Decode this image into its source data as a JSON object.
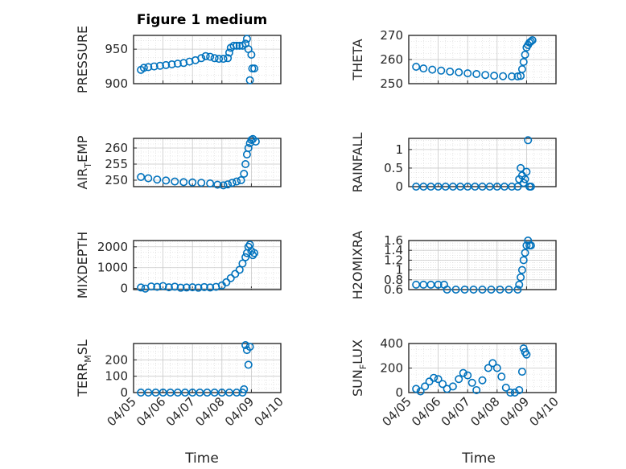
{
  "figure": {
    "title": "Figure 1 medium",
    "marker_color": "#0072BD",
    "xlabel": "Time",
    "x_ticks": [
      "04/05",
      "04/06",
      "04/07",
      "04/08",
      "04/09",
      "04/10"
    ]
  },
  "chart_data": [
    {
      "type": "scatter",
      "ylabel": {
        "main": "PRESSURE"
      },
      "xlim": [
        0,
        5
      ],
      "ylim": [
        900,
        970
      ],
      "yticks": [
        900,
        950
      ],
      "grid": true,
      "title": "Figure 1 medium",
      "series": [
        {
          "points": [
            [
              0.25,
              920
            ],
            [
              0.35,
              923
            ],
            [
              0.5,
              924
            ],
            [
              0.7,
              925
            ],
            [
              0.9,
              926
            ],
            [
              1.1,
              927
            ],
            [
              1.3,
              928
            ],
            [
              1.5,
              929
            ],
            [
              1.7,
              930
            ],
            [
              1.9,
              932
            ],
            [
              2.1,
              934
            ],
            [
              2.3,
              937
            ],
            [
              2.45,
              940
            ],
            [
              2.6,
              939
            ],
            [
              2.75,
              937
            ],
            [
              2.9,
              936
            ],
            [
              3.05,
              936
            ],
            [
              3.2,
              937
            ],
            [
              3.25,
              945
            ],
            [
              3.3,
              952
            ],
            [
              3.4,
              955
            ],
            [
              3.5,
              955
            ],
            [
              3.6,
              955
            ],
            [
              3.7,
              955
            ],
            [
              3.8,
              958
            ],
            [
              3.85,
              965
            ],
            [
              3.9,
              950
            ],
            [
              3.95,
              905
            ],
            [
              4.0,
              942
            ],
            [
              4.03,
              922
            ],
            [
              4.1,
              922
            ]
          ]
        }
      ]
    },
    {
      "type": "scatter",
      "ylabel": {
        "main": "THETA"
      },
      "xlim": [
        0,
        5
      ],
      "ylim": [
        250,
        270
      ],
      "yticks": [
        250,
        260,
        270
      ],
      "grid": true,
      "series": [
        {
          "points": [
            [
              0.25,
              257
            ],
            [
              0.5,
              256.3
            ],
            [
              0.8,
              255.8
            ],
            [
              1.1,
              255.4
            ],
            [
              1.4,
              255
            ],
            [
              1.7,
              254.7
            ],
            [
              2.0,
              254.3
            ],
            [
              2.3,
              254
            ],
            [
              2.6,
              253.6
            ],
            [
              2.9,
              253.3
            ],
            [
              3.2,
              253.1
            ],
            [
              3.5,
              253
            ],
            [
              3.7,
              253
            ],
            [
              3.8,
              253.2
            ],
            [
              3.85,
              256
            ],
            [
              3.9,
              259
            ],
            [
              3.95,
              262
            ],
            [
              4.0,
              265
            ],
            [
              4.05,
              266
            ],
            [
              4.1,
              267
            ],
            [
              4.15,
              267.5
            ],
            [
              4.2,
              268
            ]
          ]
        }
      ]
    },
    {
      "type": "scatter",
      "ylabel": {
        "main": "AIR",
        "sub": "T",
        "rest": "EMP"
      },
      "xlim": [
        0,
        5
      ],
      "ylim": [
        248,
        263
      ],
      "yticks": [
        250,
        255,
        260
      ],
      "grid": true,
      "series": [
        {
          "points": [
            [
              0.25,
              251
            ],
            [
              0.5,
              250.6
            ],
            [
              0.8,
              250.2
            ],
            [
              1.1,
              249.9
            ],
            [
              1.4,
              249.6
            ],
            [
              1.7,
              249.4
            ],
            [
              2.0,
              249.3
            ],
            [
              2.3,
              249.2
            ],
            [
              2.6,
              249
            ],
            [
              2.85,
              248.6
            ],
            [
              3.05,
              248.4
            ],
            [
              3.2,
              248.7
            ],
            [
              3.35,
              249.2
            ],
            [
              3.5,
              249.6
            ],
            [
              3.65,
              250
            ],
            [
              3.75,
              252
            ],
            [
              3.8,
              255
            ],
            [
              3.85,
              258
            ],
            [
              3.9,
              260
            ],
            [
              3.95,
              261.5
            ],
            [
              4.0,
              262.5
            ],
            [
              4.05,
              262.8
            ],
            [
              4.15,
              262
            ]
          ]
        }
      ]
    },
    {
      "type": "scatter",
      "ylabel": {
        "main": "RAINFALL"
      },
      "xlim": [
        0,
        5
      ],
      "ylim": [
        0,
        1.3
      ],
      "yticks": [
        0,
        0.5,
        1
      ],
      "grid": true,
      "series": [
        {
          "points": [
            [
              0.25,
              0
            ],
            [
              0.5,
              0
            ],
            [
              0.75,
              0
            ],
            [
              1.0,
              0
            ],
            [
              1.25,
              0
            ],
            [
              1.5,
              0
            ],
            [
              1.75,
              0
            ],
            [
              2.0,
              0
            ],
            [
              2.25,
              0
            ],
            [
              2.5,
              0
            ],
            [
              2.75,
              0
            ],
            [
              3.0,
              0
            ],
            [
              3.25,
              0
            ],
            [
              3.5,
              0
            ],
            [
              3.7,
              0
            ],
            [
              3.75,
              0.2
            ],
            [
              3.8,
              0.5
            ],
            [
              3.85,
              0.3
            ],
            [
              3.9,
              0.1
            ],
            [
              3.95,
              0.2
            ],
            [
              4.0,
              0.4
            ],
            [
              4.05,
              1.25
            ],
            [
              4.1,
              0
            ],
            [
              4.15,
              0
            ]
          ]
        }
      ]
    },
    {
      "type": "scatter",
      "ylabel": {
        "main": "MIXDEPTH"
      },
      "xlim": [
        0,
        5
      ],
      "ylim": [
        -50,
        2300
      ],
      "yticks": [
        0,
        1000,
        2000
      ],
      "grid": true,
      "series": [
        {
          "points": [
            [
              0.25,
              50
            ],
            [
              0.4,
              0
            ],
            [
              0.6,
              100
            ],
            [
              0.8,
              80
            ],
            [
              1.0,
              120
            ],
            [
              1.2,
              60
            ],
            [
              1.4,
              90
            ],
            [
              1.6,
              40
            ],
            [
              1.8,
              50
            ],
            [
              2.0,
              60
            ],
            [
              2.2,
              40
            ],
            [
              2.4,
              70
            ],
            [
              2.6,
              50
            ],
            [
              2.8,
              80
            ],
            [
              3.0,
              150
            ],
            [
              3.15,
              300
            ],
            [
              3.3,
              500
            ],
            [
              3.45,
              700
            ],
            [
              3.6,
              900
            ],
            [
              3.7,
              1200
            ],
            [
              3.8,
              1500
            ],
            [
              3.85,
              1700
            ],
            [
              3.9,
              2000
            ],
            [
              3.95,
              2100
            ],
            [
              4.0,
              1800
            ],
            [
              4.05,
              1600
            ],
            [
              4.1,
              1700
            ]
          ]
        }
      ]
    },
    {
      "type": "scatter",
      "ylabel": {
        "main": "H2OMIXRA"
      },
      "xlim": [
        0,
        5
      ],
      "ylim": [
        0.6,
        1.6
      ],
      "yticks": [
        0.6,
        0.8,
        1,
        1.2,
        1.4,
        1.6
      ],
      "grid": true,
      "series": [
        {
          "points": [
            [
              0.25,
              0.7
            ],
            [
              0.5,
              0.7
            ],
            [
              0.75,
              0.7
            ],
            [
              1.0,
              0.7
            ],
            [
              1.2,
              0.7
            ],
            [
              1.3,
              0.6
            ],
            [
              1.6,
              0.6
            ],
            [
              1.9,
              0.6
            ],
            [
              2.2,
              0.6
            ],
            [
              2.5,
              0.6
            ],
            [
              2.8,
              0.6
            ],
            [
              3.1,
              0.6
            ],
            [
              3.4,
              0.6
            ],
            [
              3.7,
              0.6
            ],
            [
              3.75,
              0.7
            ],
            [
              3.8,
              0.85
            ],
            [
              3.85,
              1.0
            ],
            [
              3.9,
              1.2
            ],
            [
              3.95,
              1.35
            ],
            [
              4.0,
              1.5
            ],
            [
              4.05,
              1.6
            ],
            [
              4.1,
              1.5
            ],
            [
              4.15,
              1.5
            ]
          ]
        }
      ]
    },
    {
      "type": "scatter",
      "ylabel": {
        "main": "TERR",
        "sub": "M",
        "rest": "SL"
      },
      "xlim": [
        0,
        5
      ],
      "ylim": [
        0,
        300
      ],
      "yticks": [
        0,
        100,
        200
      ],
      "grid": true,
      "series": [
        {
          "points": [
            [
              0.25,
              0
            ],
            [
              0.5,
              0
            ],
            [
              0.75,
              0
            ],
            [
              1.0,
              0
            ],
            [
              1.25,
              0
            ],
            [
              1.5,
              0
            ],
            [
              1.75,
              0
            ],
            [
              2.0,
              0
            ],
            [
              2.25,
              0
            ],
            [
              2.5,
              0
            ],
            [
              2.75,
              0
            ],
            [
              3.0,
              0
            ],
            [
              3.25,
              0
            ],
            [
              3.5,
              0
            ],
            [
              3.7,
              0
            ],
            [
              3.75,
              20
            ],
            [
              3.8,
              290
            ],
            [
              3.85,
              260
            ],
            [
              3.9,
              170
            ],
            [
              3.95,
              280
            ]
          ]
        }
      ]
    },
    {
      "type": "scatter",
      "ylabel": {
        "main": "SUN",
        "sub": "F",
        "rest": "LUX"
      },
      "xlim": [
        0,
        5
      ],
      "ylim": [
        0,
        400
      ],
      "yticks": [
        0,
        200,
        400
      ],
      "grid": true,
      "series": [
        {
          "points": [
            [
              0.25,
              30
            ],
            [
              0.4,
              10
            ],
            [
              0.55,
              50
            ],
            [
              0.7,
              90
            ],
            [
              0.85,
              120
            ],
            [
              1.0,
              110
            ],
            [
              1.15,
              70
            ],
            [
              1.3,
              30
            ],
            [
              1.5,
              50
            ],
            [
              1.7,
              110
            ],
            [
              1.85,
              160
            ],
            [
              2.0,
              140
            ],
            [
              2.15,
              80
            ],
            [
              2.3,
              20
            ],
            [
              2.5,
              100
            ],
            [
              2.7,
              200
            ],
            [
              2.85,
              240
            ],
            [
              3.0,
              200
            ],
            [
              3.15,
              130
            ],
            [
              3.3,
              40
            ],
            [
              3.45,
              0
            ],
            [
              3.6,
              0
            ],
            [
              3.75,
              20
            ],
            [
              3.85,
              170
            ],
            [
              3.9,
              360
            ],
            [
              3.95,
              330
            ],
            [
              4.0,
              310
            ]
          ]
        }
      ]
    }
  ]
}
